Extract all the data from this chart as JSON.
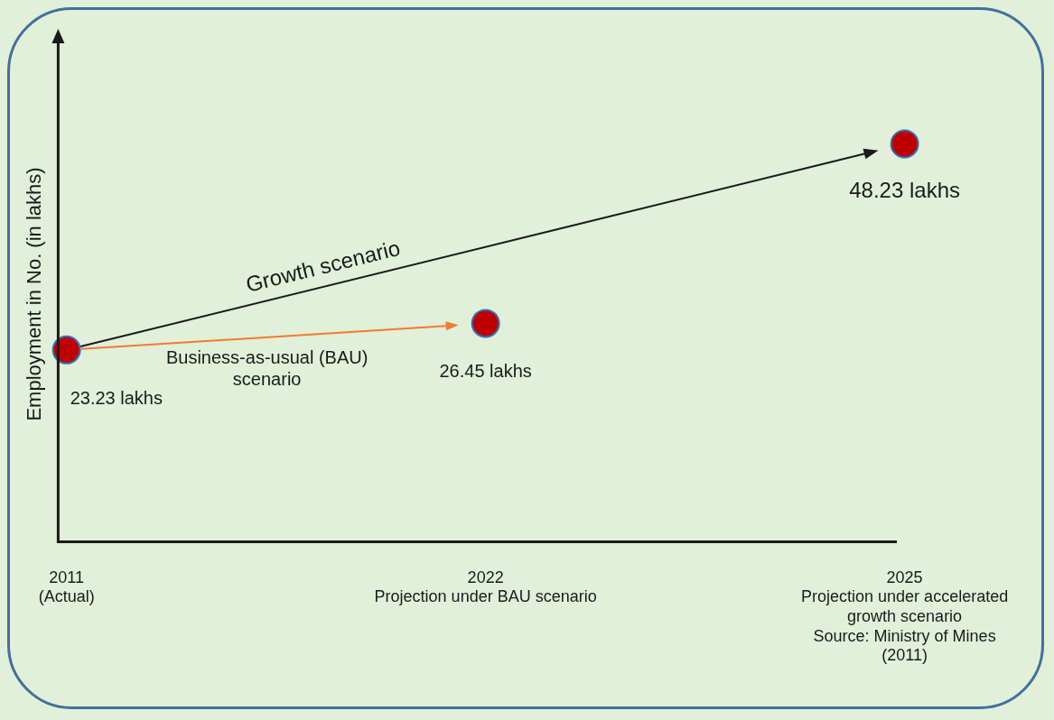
{
  "chart_data": {
    "type": "scatter",
    "ylabel": "Employment in No. (in lakhs)",
    "categories": [
      "2011\n(Actual)",
      "2022\nProjection under BAU scenario",
      "2025\nProjection under accelerated\ngrowth scenario\nSource: Ministry of Mines\n(2011)"
    ],
    "series": [
      {
        "color": "#c00000",
        "values": [
          23.23,
          26.45,
          48.23
        ],
        "value_labels": [
          "23.23 lakhs",
          "26.45 lakhs",
          "48.23 lakhs"
        ]
      }
    ],
    "annotations": [
      "Growth scenario",
      "Business-as-usual (BAU) scenario"
    ],
    "marker": "circle",
    "legend": false,
    "grid": false,
    "tick_labels": "x"
  }
}
